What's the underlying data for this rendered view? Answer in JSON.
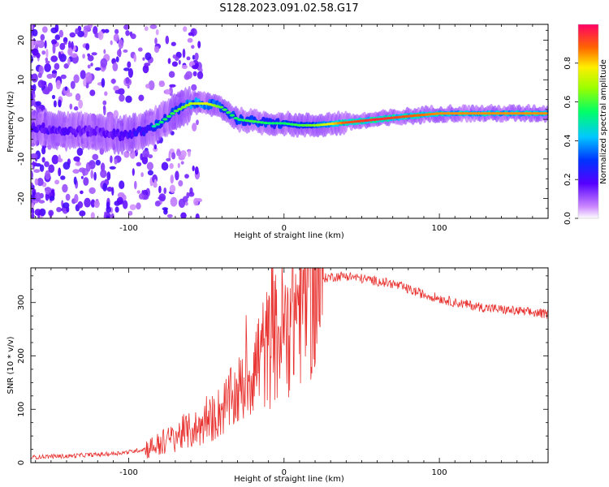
{
  "title": "S128.2023.091.02.58.G17",
  "colors": {
    "spectrum_line": "#ff2040",
    "snr_line": "#e8322f",
    "frame": "#000000"
  },
  "chart_data": [
    {
      "type": "heatmap",
      "xlabel": "Height of straight line (km)",
      "ylabel": "Frequency (Hz)",
      "xlim": [
        -163,
        170
      ],
      "ylim": [
        -25,
        24
      ],
      "xticks": [
        -100,
        0,
        100
      ],
      "yticks": [
        -20,
        -10,
        0,
        10,
        20
      ],
      "grid": false,
      "colorbar": {
        "label": "Normalized spectral amplitude",
        "range": [
          0,
          1
        ],
        "ticks": [
          0.0,
          0.2,
          0.4,
          0.6,
          0.8
        ],
        "tick_labels": [
          "0.0",
          "0.2",
          "0.4",
          "0.6",
          "0.8"
        ]
      },
      "ridge": {
        "x": [
          -160,
          -140,
          -120,
          -105,
          -90,
          -80,
          -70,
          -60,
          -50,
          -40,
          -30,
          -20,
          -10,
          0,
          10,
          20,
          40,
          60,
          80,
          100,
          130,
          170
        ],
        "frequency": [
          -2,
          -3,
          -3,
          -4,
          -3,
          -1,
          2,
          4,
          4,
          3,
          0,
          -0.5,
          -1,
          -1,
          -1.5,
          -1.5,
          -0.8,
          0,
          0.8,
          1.5,
          1.5,
          1.5
        ],
        "amplitude": [
          0.35,
          0.35,
          0.3,
          0.35,
          0.45,
          0.55,
          0.6,
          0.7,
          0.75,
          0.6,
          0.55,
          0.6,
          0.55,
          0.55,
          0.6,
          0.65,
          0.9,
          0.95,
          0.9,
          0.85,
          0.85,
          0.85
        ]
      }
    },
    {
      "type": "line",
      "xlabel": "Height of straight line (km)",
      "ylabel": "SNR (10 * v/v)",
      "xlim": [
        -163,
        170
      ],
      "ylim": [
        0,
        365
      ],
      "xticks": [
        -100,
        0,
        100
      ],
      "yticks": [
        0,
        100,
        200,
        300
      ],
      "grid": false,
      "series": [
        {
          "x": [
            -163,
            -150,
            -140,
            -130,
            -120,
            -110,
            -100,
            -90,
            -80,
            -75,
            -70,
            -65,
            -60,
            -55,
            -50,
            -45,
            -40,
            -35,
            -30,
            -25,
            -20,
            -15,
            -10,
            -5,
            0,
            5,
            10,
            15,
            20,
            25,
            30,
            40,
            50,
            60,
            70,
            80,
            90,
            100,
            110,
            120,
            130,
            140,
            150,
            160,
            170
          ],
          "values": [
            10,
            12,
            12,
            14,
            15,
            17,
            20,
            25,
            35,
            40,
            50,
            55,
            60,
            65,
            75,
            85,
            100,
            115,
            130,
            150,
            175,
            200,
            215,
            235,
            255,
            280,
            300,
            320,
            335,
            345,
            348,
            350,
            345,
            340,
            335,
            325,
            315,
            308,
            300,
            295,
            290,
            287,
            284,
            281,
            278
          ]
        }
      ]
    }
  ]
}
